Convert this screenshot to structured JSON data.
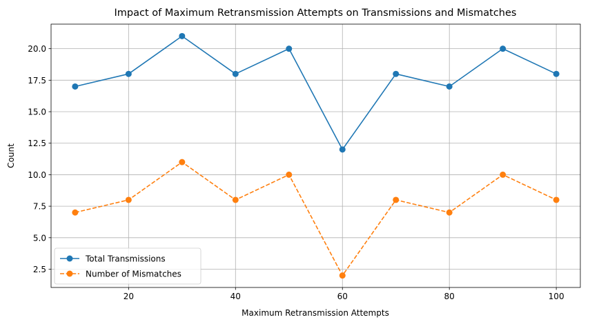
{
  "chart_data": {
    "type": "line",
    "title": "Impact of Maximum Retransmission Attempts on Transmissions and Mismatches",
    "xlabel": "Maximum Retransmission Attempts",
    "ylabel": "Count",
    "x": [
      10,
      20,
      30,
      40,
      50,
      60,
      70,
      80,
      90,
      100
    ],
    "xlim": [
      5.5,
      104.5
    ],
    "ylim": [
      1.05,
      21.95
    ],
    "xticks": [
      20,
      40,
      60,
      80,
      100
    ],
    "yticks": [
      "2.5",
      "5.0",
      "7.5",
      "10.0",
      "12.5",
      "15.0",
      "17.5",
      "20.0"
    ],
    "grid": true,
    "legend_position": "lower-left",
    "series": [
      {
        "name": "Total Transmissions",
        "values": [
          17,
          18,
          21,
          18,
          20,
          12,
          18,
          17,
          20,
          18
        ],
        "color": "#1f77b4",
        "linestyle": "solid",
        "marker": "circle"
      },
      {
        "name": "Number of Mismatches",
        "values": [
          7,
          8,
          11,
          8,
          10,
          2,
          8,
          7,
          10,
          8
        ],
        "color": "#ff7f0e",
        "linestyle": "dashed",
        "marker": "circle"
      }
    ]
  }
}
